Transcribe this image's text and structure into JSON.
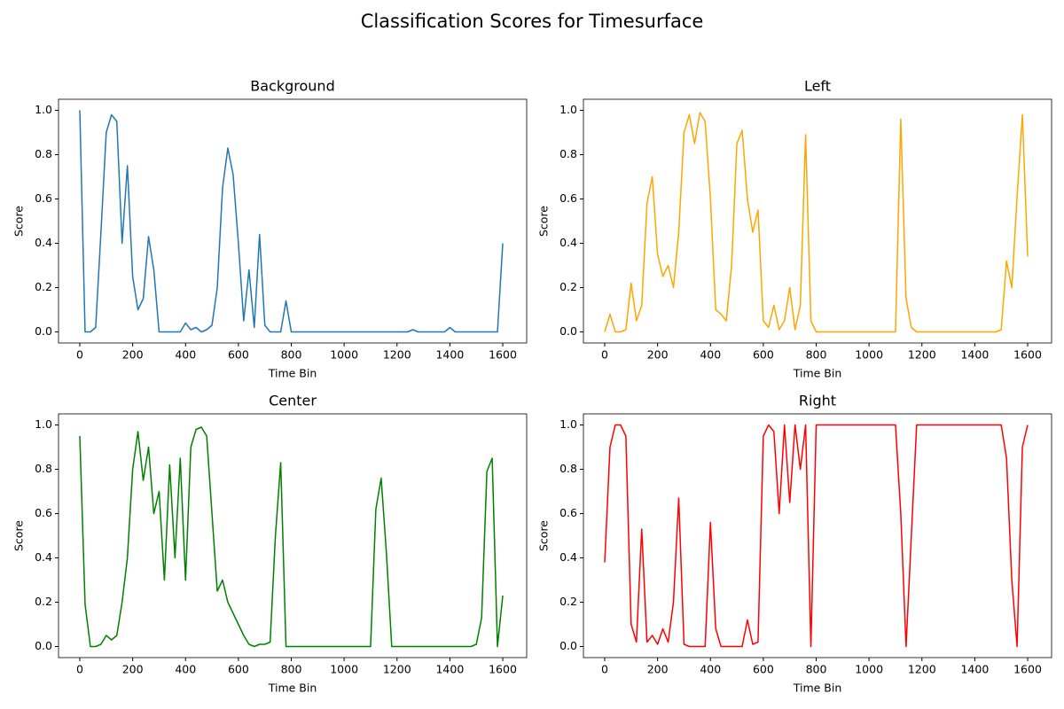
{
  "title": "Classification Scores for Timesurface",
  "chart_data": [
    {
      "type": "line",
      "title": "Background",
      "xlabel": "Time Bin",
      "ylabel": "Score",
      "color": "#1f77b4",
      "x": [
        0,
        20,
        40,
        60,
        80,
        100,
        120,
        140,
        160,
        180,
        200,
        220,
        240,
        260,
        280,
        300,
        320,
        340,
        360,
        380,
        400,
        420,
        440,
        460,
        480,
        500,
        520,
        540,
        560,
        580,
        600,
        620,
        640,
        660,
        680,
        700,
        720,
        740,
        760,
        780,
        800,
        820,
        840,
        860,
        880,
        900,
        920,
        940,
        960,
        980,
        1000,
        1020,
        1040,
        1060,
        1080,
        1100,
        1120,
        1140,
        1160,
        1180,
        1200,
        1220,
        1240,
        1260,
        1280,
        1300,
        1320,
        1340,
        1360,
        1380,
        1400,
        1420,
        1440,
        1460,
        1480,
        1500,
        1520,
        1540,
        1560,
        1580,
        1600
      ],
      "values": [
        1.0,
        0,
        0,
        0.02,
        0.45,
        0.9,
        0.98,
        0.95,
        0.4,
        0.75,
        0.25,
        0.1,
        0.15,
        0.43,
        0.28,
        0,
        0,
        0,
        0,
        0,
        0.04,
        0.01,
        0.02,
        0,
        0.01,
        0.03,
        0.2,
        0.65,
        0.83,
        0.71,
        0.4,
        0.05,
        0.28,
        0.02,
        0.44,
        0.03,
        0,
        0,
        0,
        0.14,
        0,
        0,
        0,
        0,
        0,
        0,
        0,
        0,
        0,
        0,
        0,
        0,
        0,
        0,
        0,
        0,
        0,
        0,
        0,
        0,
        0,
        0,
        0,
        0.01,
        0,
        0,
        0,
        0,
        0,
        0,
        0.02,
        0,
        0,
        0,
        0,
        0,
        0,
        0,
        0,
        0,
        0.4
      ],
      "xlim": [
        -80.5,
        1690.5
      ],
      "xticks": [
        0,
        200,
        400,
        600,
        800,
        1000,
        1200,
        1400,
        1600
      ],
      "ylim": [
        -0.05,
        1.05
      ],
      "yticks": [
        {
          "value": 0,
          "label": "0.0"
        },
        {
          "value": 0.2,
          "label": "0.2"
        },
        {
          "value": 0.4,
          "label": "0.4"
        },
        {
          "value": 0.6,
          "label": "0.6"
        },
        {
          "value": 0.8,
          "label": "0.8"
        },
        {
          "value": 1,
          "label": "1.0"
        }
      ]
    },
    {
      "type": "line",
      "title": "Left",
      "xlabel": "Time Bin",
      "ylabel": "Score",
      "color": "#ffa500",
      "x": [
        0,
        20,
        40,
        60,
        80,
        100,
        120,
        140,
        160,
        180,
        200,
        220,
        240,
        260,
        280,
        300,
        320,
        340,
        360,
        380,
        400,
        420,
        440,
        460,
        480,
        500,
        520,
        540,
        560,
        580,
        600,
        620,
        640,
        660,
        680,
        700,
        720,
        740,
        760,
        780,
        800,
        820,
        840,
        860,
        880,
        900,
        920,
        940,
        960,
        980,
        1000,
        1020,
        1040,
        1060,
        1080,
        1100,
        1120,
        1140,
        1160,
        1180,
        1200,
        1220,
        1240,
        1260,
        1280,
        1300,
        1320,
        1340,
        1360,
        1380,
        1400,
        1420,
        1440,
        1460,
        1480,
        1500,
        1520,
        1540,
        1560,
        1580,
        1600
      ],
      "values": [
        0,
        0.08,
        0,
        0,
        0.01,
        0.22,
        0.05,
        0.12,
        0.58,
        0.7,
        0.35,
        0.25,
        0.3,
        0.2,
        0.45,
        0.9,
        0.98,
        0.85,
        0.99,
        0.95,
        0.6,
        0.1,
        0.08,
        0.05,
        0.3,
        0.85,
        0.91,
        0.6,
        0.45,
        0.55,
        0.05,
        0.02,
        0.12,
        0.01,
        0.05,
        0.2,
        0.01,
        0.12,
        0.89,
        0.05,
        0,
        0,
        0,
        0,
        0,
        0,
        0,
        0,
        0,
        0,
        0,
        0,
        0,
        0,
        0,
        0,
        0.96,
        0.15,
        0.02,
        0,
        0,
        0,
        0,
        0,
        0,
        0,
        0,
        0,
        0,
        0,
        0,
        0,
        0,
        0,
        0,
        0.01,
        0.32,
        0.2,
        0.61,
        0.98,
        0.34
      ],
      "xlim": [
        -80.5,
        1690.5
      ],
      "xticks": [
        0,
        200,
        400,
        600,
        800,
        1000,
        1200,
        1400,
        1600
      ],
      "ylim": [
        -0.05,
        1.05
      ],
      "yticks": [
        {
          "value": 0,
          "label": "0.0"
        },
        {
          "value": 0.2,
          "label": "0.2"
        },
        {
          "value": 0.4,
          "label": "0.4"
        },
        {
          "value": 0.6,
          "label": "0.6"
        },
        {
          "value": 0.8,
          "label": "0.8"
        },
        {
          "value": 1,
          "label": "1.0"
        }
      ]
    },
    {
      "type": "line",
      "title": "Center",
      "xlabel": "Time Bin",
      "ylabel": "Score",
      "color": "#008000",
      "x": [
        0,
        20,
        40,
        60,
        80,
        100,
        120,
        140,
        160,
        180,
        200,
        220,
        240,
        260,
        280,
        300,
        320,
        340,
        360,
        380,
        400,
        420,
        440,
        460,
        480,
        500,
        520,
        540,
        560,
        580,
        600,
        620,
        640,
        660,
        680,
        700,
        720,
        740,
        760,
        780,
        800,
        820,
        840,
        860,
        880,
        900,
        920,
        940,
        960,
        980,
        1000,
        1020,
        1040,
        1060,
        1080,
        1100,
        1120,
        1140,
        1160,
        1180,
        1200,
        1220,
        1240,
        1260,
        1280,
        1300,
        1320,
        1340,
        1360,
        1380,
        1400,
        1420,
        1440,
        1460,
        1480,
        1500,
        1520,
        1540,
        1560,
        1580,
        1600
      ],
      "values": [
        0.95,
        0.19,
        0,
        0,
        0.01,
        0.05,
        0.03,
        0.05,
        0.2,
        0.4,
        0.8,
        0.97,
        0.75,
        0.9,
        0.6,
        0.7,
        0.3,
        0.82,
        0.4,
        0.85,
        0.3,
        0.9,
        0.98,
        0.99,
        0.95,
        0.6,
        0.25,
        0.3,
        0.2,
        0.15,
        0.1,
        0.05,
        0.01,
        0,
        0.01,
        0.01,
        0.02,
        0.5,
        0.83,
        0,
        0,
        0,
        0,
        0,
        0,
        0,
        0,
        0,
        0,
        0,
        0,
        0,
        0,
        0,
        0,
        0,
        0.62,
        0.76,
        0.42,
        0,
        0,
        0,
        0,
        0,
        0,
        0,
        0,
        0,
        0,
        0,
        0,
        0,
        0,
        0,
        0,
        0.01,
        0.13,
        0.79,
        0.85,
        0,
        0.23
      ],
      "xlim": [
        -80.5,
        1690.5
      ],
      "xticks": [
        0,
        200,
        400,
        600,
        800,
        1000,
        1200,
        1400,
        1600
      ],
      "ylim": [
        -0.05,
        1.05
      ],
      "yticks": [
        {
          "value": 0,
          "label": "0.0"
        },
        {
          "value": 0.2,
          "label": "0.2"
        },
        {
          "value": 0.4,
          "label": "0.4"
        },
        {
          "value": 0.6,
          "label": "0.6"
        },
        {
          "value": 0.8,
          "label": "0.8"
        },
        {
          "value": 1,
          "label": "1.0"
        }
      ]
    },
    {
      "type": "line",
      "title": "Right",
      "xlabel": "Time Bin",
      "ylabel": "Score",
      "color": "#ff0000",
      "x": [
        0,
        20,
        40,
        60,
        80,
        100,
        120,
        140,
        160,
        180,
        200,
        220,
        240,
        260,
        280,
        300,
        320,
        340,
        360,
        380,
        400,
        420,
        440,
        460,
        480,
        500,
        520,
        540,
        560,
        580,
        600,
        620,
        640,
        660,
        680,
        700,
        720,
        740,
        760,
        780,
        800,
        820,
        840,
        860,
        880,
        900,
        920,
        940,
        960,
        980,
        1000,
        1020,
        1040,
        1060,
        1080,
        1100,
        1120,
        1140,
        1160,
        1180,
        1200,
        1220,
        1240,
        1260,
        1280,
        1300,
        1320,
        1340,
        1360,
        1380,
        1400,
        1420,
        1440,
        1460,
        1480,
        1500,
        1520,
        1540,
        1560,
        1580,
        1600
      ],
      "values": [
        0.38,
        0.9,
        1.0,
        1.0,
        0.95,
        0.1,
        0.02,
        0.53,
        0.02,
        0.05,
        0.01,
        0.08,
        0.02,
        0.2,
        0.67,
        0.01,
        0,
        0,
        0,
        0,
        0.56,
        0.08,
        0,
        0,
        0,
        0,
        0,
        0.12,
        0.01,
        0.02,
        0.95,
        1.0,
        0.97,
        0.6,
        1.0,
        0.65,
        1.0,
        0.8,
        1.0,
        0,
        1,
        1,
        1,
        1,
        1,
        1,
        1,
        1,
        1,
        1,
        1,
        1,
        1,
        1,
        1,
        1,
        0.6,
        0,
        0.5,
        1,
        1,
        1,
        1,
        1,
        1,
        1,
        1,
        1,
        1,
        1,
        1,
        1,
        1,
        1,
        1,
        1,
        0.85,
        0.3,
        0,
        0.9,
        1.0
      ],
      "xlim": [
        -80.5,
        1690.5
      ],
      "xticks": [
        0,
        200,
        400,
        600,
        800,
        1000,
        1200,
        1400,
        1600
      ],
      "ylim": [
        -0.05,
        1.05
      ],
      "yticks": [
        {
          "value": 0,
          "label": "0.0"
        },
        {
          "value": 0.2,
          "label": "0.2"
        },
        {
          "value": 0.4,
          "label": "0.4"
        },
        {
          "value": 0.6,
          "label": "0.6"
        },
        {
          "value": 0.8,
          "label": "0.8"
        },
        {
          "value": 1,
          "label": "1.0"
        }
      ]
    }
  ]
}
